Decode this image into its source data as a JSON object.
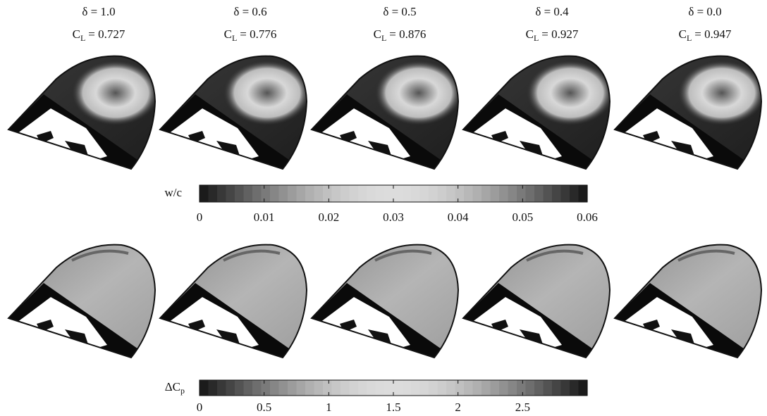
{
  "lift_symbol": {
    "base": "C",
    "sub": "L"
  },
  "columns": [
    {
      "delta": "δ = 1.0",
      "lift": "= 0.727"
    },
    {
      "delta": "δ = 0.6",
      "lift": "= 0.776"
    },
    {
      "delta": "δ = 0.5",
      "lift": "= 0.876"
    },
    {
      "delta": "δ = 0.4",
      "lift": "= 0.927"
    },
    {
      "delta": "δ = 0.0",
      "lift": "= 0.947"
    }
  ],
  "colorbars": [
    {
      "label": "w/c",
      "lim": [
        0,
        0.06
      ],
      "ticks": [
        0,
        0.01,
        0.02,
        0.03,
        0.04,
        0.05,
        0.06
      ]
    },
    {
      "label": "ΔC",
      "label_sub": "p",
      "lim": [
        0,
        3
      ],
      "ticks": [
        0,
        0.5,
        1,
        1.5,
        2,
        2.5
      ]
    }
  ]
}
